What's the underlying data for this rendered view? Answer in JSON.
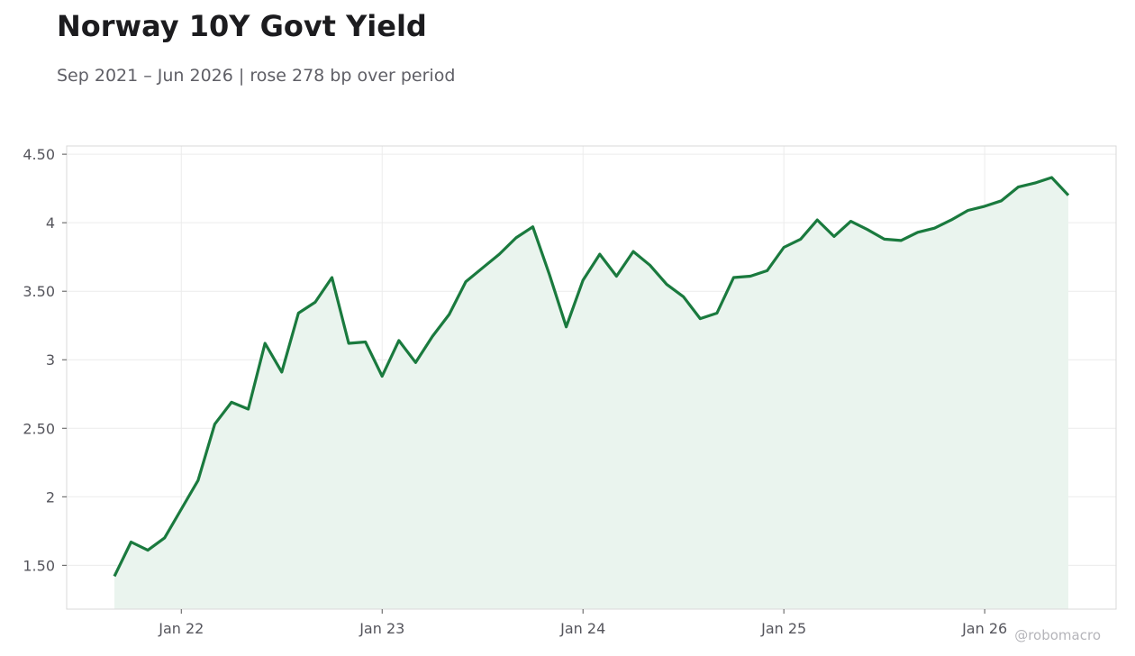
{
  "header": {
    "title": "Norway 10Y Govt Yield",
    "subtitle": "Sep 2021 – Jun 2026 | rose 278 bp over period"
  },
  "watermark": "@robomacro",
  "colors": {
    "line": "#1a7a3e",
    "fill": "#eaf4ee",
    "grid": "#ececec",
    "frame": "#d9d9d9"
  },
  "chart_data": {
    "type": "line",
    "title": "Norway 10Y Govt Yield",
    "subtitle": "Sep 2021 – Jun 2026 | rose 278 bp over period",
    "xlabel": "",
    "ylabel": "",
    "ylim": [
      1.18,
      4.56
    ],
    "y_ticks": [
      {
        "value": 1.5,
        "label": "1.50"
      },
      {
        "value": 2.0,
        "label": "2"
      },
      {
        "value": 2.5,
        "label": "2.50"
      },
      {
        "value": 3.0,
        "label": "3"
      },
      {
        "value": 3.5,
        "label": "3.50"
      },
      {
        "value": 4.0,
        "label": "4"
      },
      {
        "value": 4.5,
        "label": "4.50"
      }
    ],
    "x_ticks": [
      {
        "date": "2022-01",
        "label": "Jan 22"
      },
      {
        "date": "2023-01",
        "label": "Jan 23"
      },
      {
        "date": "2024-01",
        "label": "Jan 24"
      },
      {
        "date": "2025-01",
        "label": "Jan 25"
      },
      {
        "date": "2026-01",
        "label": "Jan 26"
      }
    ],
    "grid": true,
    "area_fill": true,
    "series": [
      {
        "x": [
          "2021-09",
          "2021-10",
          "2021-11",
          "2021-12",
          "2022-01",
          "2022-02",
          "2022-03",
          "2022-04",
          "2022-05",
          "2022-06",
          "2022-07",
          "2022-08",
          "2022-09",
          "2022-10",
          "2022-11",
          "2022-12",
          "2023-01",
          "2023-02",
          "2023-03",
          "2023-04",
          "2023-05",
          "2023-06",
          "2023-07",
          "2023-08",
          "2023-09",
          "2023-10",
          "2023-11",
          "2023-12",
          "2024-01",
          "2024-02",
          "2024-03",
          "2024-04",
          "2024-05",
          "2024-06",
          "2024-07",
          "2024-08",
          "2024-09",
          "2024-10",
          "2024-11",
          "2024-12",
          "2025-01",
          "2025-02",
          "2025-03",
          "2025-04",
          "2025-05",
          "2025-06",
          "2025-07",
          "2025-08",
          "2025-09",
          "2025-10",
          "2025-11",
          "2025-12",
          "2026-01",
          "2026-02",
          "2026-03",
          "2026-04",
          "2026-05",
          "2026-06"
        ],
        "values": [
          1.42,
          1.67,
          1.61,
          1.7,
          1.91,
          2.12,
          2.53,
          2.69,
          2.64,
          3.12,
          2.91,
          3.34,
          3.42,
          3.6,
          3.12,
          3.13,
          2.88,
          3.14,
          2.98,
          3.17,
          3.33,
          3.57,
          3.67,
          3.77,
          3.89,
          3.97,
          3.62,
          3.24,
          3.58,
          3.77,
          3.61,
          3.79,
          3.69,
          3.55,
          3.46,
          3.3,
          3.34,
          3.6,
          3.61,
          3.65,
          3.82,
          3.88,
          4.02,
          3.9,
          4.01,
          3.95,
          3.88,
          3.87,
          3.93,
          3.96,
          4.02,
          4.09,
          4.12,
          4.16,
          4.26,
          4.29,
          4.33,
          4.2
        ]
      }
    ]
  }
}
